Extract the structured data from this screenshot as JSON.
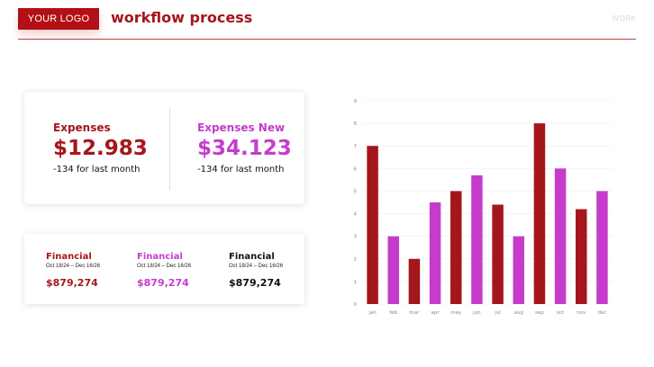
{
  "header": {
    "logo_text": "YOUR LOGO",
    "title": "workflow process",
    "right_label": "WORK"
  },
  "expenses": [
    {
      "label": "Expenses",
      "amount": "$12.983",
      "note": "-134 for last month",
      "color": "#a5161c"
    },
    {
      "label": "Expenses New",
      "amount": "$34.123",
      "note": "-134 for last month",
      "color": "#c53ccc"
    }
  ],
  "financials": [
    {
      "label": "Financial",
      "date": "Oct 18/24 – Dec 16/26",
      "amount": "$879,274",
      "color": "#a5161c"
    },
    {
      "label": "Financial",
      "date": "Oct 18/24 – Dec 16/26",
      "amount": "$879,274",
      "color": "#c53ccc"
    },
    {
      "label": "Financial",
      "date": "Oct 18/24 – Dec 16/26",
      "amount": "$879,274",
      "color": "#111111"
    }
  ],
  "chart_data": {
    "type": "bar",
    "categories": [
      "jan",
      "feb",
      "mar",
      "apr",
      "may",
      "jun",
      "jul",
      "aug",
      "sep",
      "oct",
      "nov",
      "dec"
    ],
    "values": [
      7,
      3,
      2,
      4.5,
      5,
      5.7,
      4.4,
      3,
      8,
      6,
      4.2,
      5
    ],
    "bar_colors": [
      "#a5161c",
      "#c53ccc",
      "#a5161c",
      "#c53ccc",
      "#a5161c",
      "#c53ccc",
      "#a5161c",
      "#c53ccc",
      "#a5161c",
      "#c53ccc",
      "#a5161c",
      "#c53ccc"
    ],
    "ylim": [
      0,
      9
    ],
    "yticks": [
      0,
      1,
      2,
      3,
      4,
      5,
      6,
      7,
      8,
      9
    ],
    "grid": true,
    "title": "",
    "xlabel": "",
    "ylabel": ""
  }
}
